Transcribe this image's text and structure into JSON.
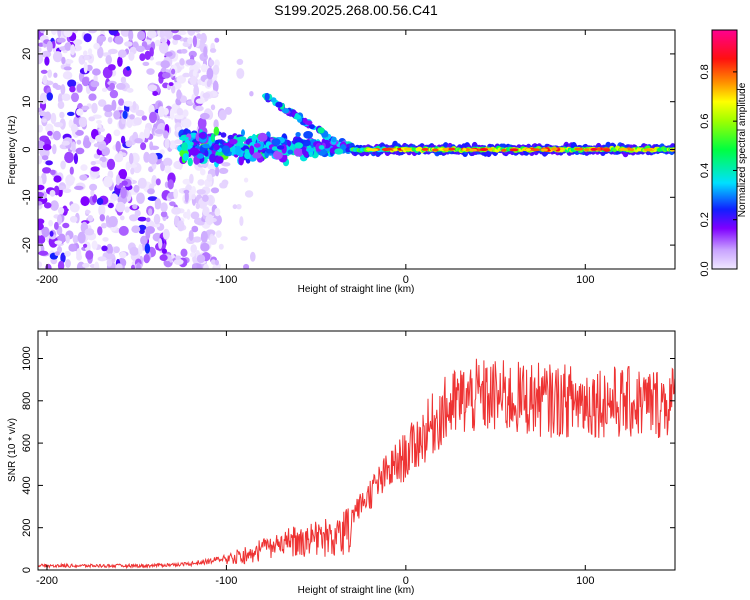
{
  "title": "S199.2025.268.00.56.C41",
  "chart_data": [
    {
      "type": "heatmap",
      "xlabel": "Height of straight line (km)",
      "ylabel": "Frequency (Hz)",
      "xlim": [
        -205,
        150
      ],
      "ylim": [
        -25,
        25
      ],
      "x_ticks": [
        -200,
        -100,
        0,
        100
      ],
      "y_ticks": [
        -20,
        -10,
        0,
        10,
        20
      ],
      "colorbar": {
        "label": "Normalized spectral amplitude",
        "range": [
          0,
          0.97
        ],
        "ticks": [
          0.0,
          0.2,
          0.4,
          0.6,
          0.8
        ]
      },
      "features": [
        {
          "name": "diffuse-noise",
          "x_range": [
            -205,
            -125
          ],
          "freq_range": [
            -25,
            25
          ],
          "amplitude": 0.1
        },
        {
          "name": "main-signal",
          "x_range": [
            -125,
            150
          ],
          "center_freq": 0,
          "amplitude": 0.8
        },
        {
          "name": "multipath-branch",
          "x_range": [
            -78,
            -40
          ],
          "freq_from": 11,
          "freq_to": 2,
          "amplitude": 0.3
        }
      ]
    },
    {
      "type": "line",
      "xlabel": "Height of straight line (km)",
      "ylabel": "SNR (10 * v/v)",
      "xlim": [
        -205,
        150
      ],
      "ylim": [
        0,
        1130
      ],
      "x_ticks": [
        -200,
        -100,
        0,
        100
      ],
      "y_ticks": [
        0,
        200,
        400,
        600,
        800,
        1000
      ],
      "color": "#ee3333",
      "series": [
        {
          "name": "SNR",
          "x": [
            -205,
            -190,
            -175,
            -160,
            -145,
            -130,
            -120,
            -110,
            -100,
            -90,
            -80,
            -70,
            -60,
            -50,
            -40,
            -30,
            -20,
            -10,
            0,
            10,
            20,
            30,
            40,
            50,
            60,
            70,
            80,
            90,
            100,
            110,
            120,
            130,
            140,
            150
          ],
          "values": [
            20,
            20,
            20,
            20,
            20,
            25,
            30,
            40,
            60,
            90,
            120,
            150,
            180,
            200,
            200,
            260,
            360,
            460,
            540,
            640,
            740,
            800,
            820,
            820,
            810,
            810,
            800,
            800,
            800,
            800,
            790,
            790,
            790,
            800
          ]
        }
      ]
    }
  ]
}
